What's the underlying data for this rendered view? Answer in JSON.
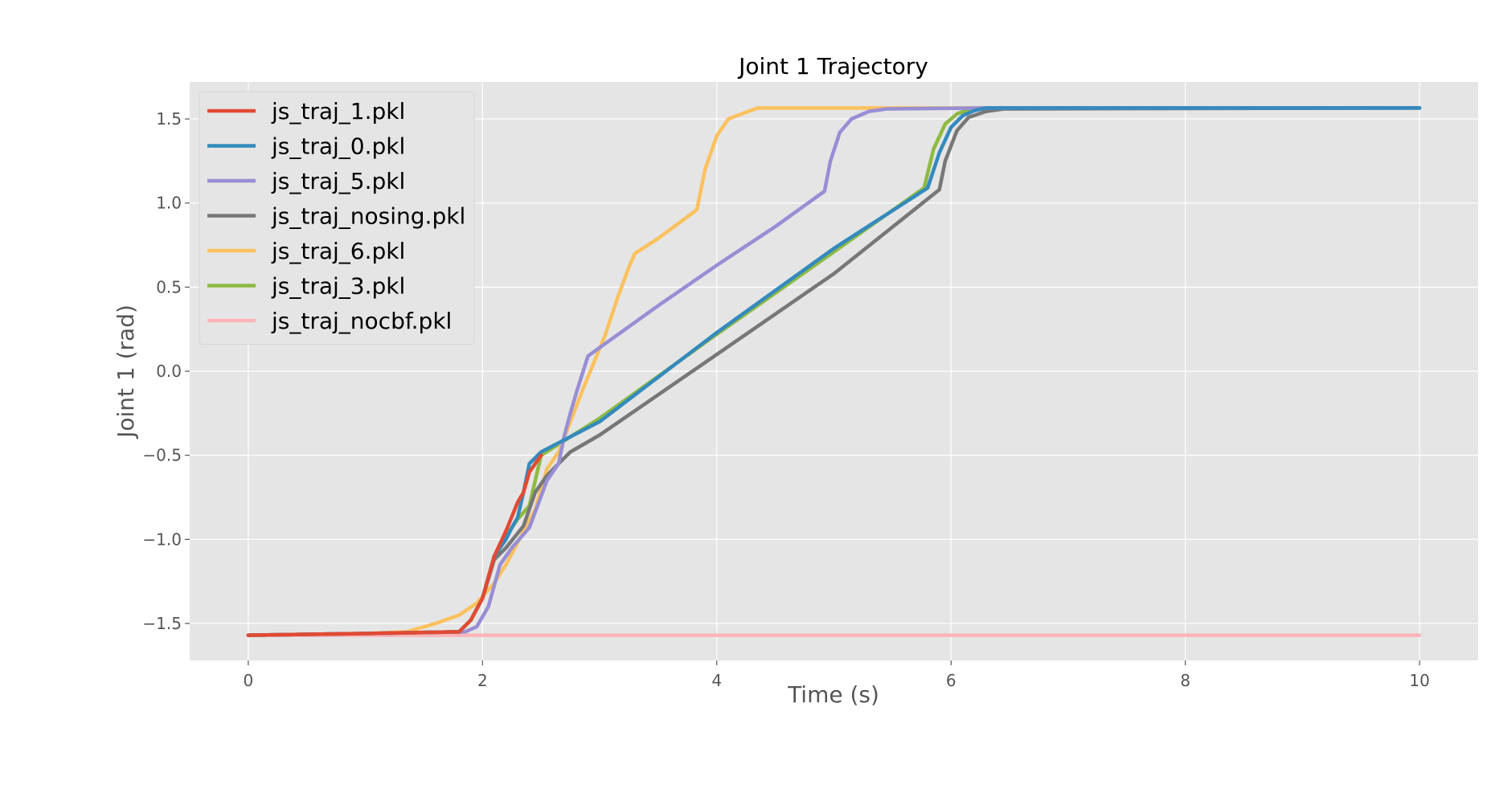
{
  "chart_data": {
    "type": "line",
    "title": "Joint 1 Trajectory",
    "xlabel": "Time (s)",
    "ylabel": "Joint 1 (rad)",
    "xlim": [
      -0.5,
      10.5
    ],
    "ylim": [
      -1.72,
      1.72
    ],
    "xticks": [
      0,
      2,
      4,
      6,
      8,
      10
    ],
    "xtick_labels": [
      "0",
      "2",
      "4",
      "6",
      "8",
      "10"
    ],
    "yticks": [
      -1.5,
      -1.0,
      -0.5,
      0.0,
      0.5,
      1.0,
      1.5
    ],
    "ytick_labels": [
      "−1.5",
      "−1.0",
      "−0.5",
      "0.0",
      "0.5",
      "1.0",
      "1.5"
    ],
    "grid": true,
    "legend_position": "top-left",
    "plot_background": "#e5e5e5",
    "series": [
      {
        "name": "js_traj_1.pkl",
        "color": "#E24A33",
        "x": [
          0,
          1.0,
          1.8,
          1.9,
          2.0,
          2.1,
          2.2,
          2.3,
          2.35,
          2.4,
          2.45,
          2.5
        ],
        "y": [
          -1.57,
          -1.56,
          -1.55,
          -1.48,
          -1.35,
          -1.1,
          -0.95,
          -0.78,
          -0.72,
          -0.6,
          -0.55,
          -0.5
        ]
      },
      {
        "name": "js_traj_0.pkl",
        "color": "#348ABD",
        "x": [
          0,
          1.0,
          1.8,
          1.9,
          2.0,
          2.1,
          2.2,
          2.25,
          2.3,
          2.35,
          2.4,
          2.5,
          3.0,
          4.0,
          5.0,
          5.8,
          5.9,
          6.0,
          6.1,
          6.2,
          6.3,
          10.0
        ],
        "y": [
          -1.57,
          -1.56,
          -1.55,
          -1.48,
          -1.35,
          -1.1,
          -1.0,
          -0.93,
          -0.87,
          -0.72,
          -0.55,
          -0.48,
          -0.3,
          0.23,
          0.73,
          1.09,
          1.3,
          1.45,
          1.52,
          1.55,
          1.565,
          1.565
        ]
      },
      {
        "name": "js_traj_5.pkl",
        "color": "#988ED5",
        "x": [
          0,
          1.0,
          1.85,
          1.95,
          2.05,
          2.15,
          2.25,
          2.4,
          2.55,
          2.65,
          2.7,
          2.75,
          2.8,
          2.9,
          3.0,
          3.5,
          4.0,
          4.5,
          4.92,
          4.97,
          5.05,
          5.15,
          5.3,
          5.45,
          6.3,
          10.0
        ],
        "y": [
          -1.57,
          -1.56,
          -1.55,
          -1.52,
          -1.4,
          -1.15,
          -1.05,
          -0.93,
          -0.65,
          -0.55,
          -0.38,
          -0.25,
          -0.13,
          0.09,
          0.14,
          0.39,
          0.63,
          0.86,
          1.07,
          1.25,
          1.42,
          1.5,
          1.545,
          1.56,
          1.565,
          1.565
        ]
      },
      {
        "name": "js_traj_nosing.pkl",
        "color": "#777777",
        "x": [
          0,
          1.0,
          1.8,
          1.9,
          2.0,
          2.1,
          2.2,
          2.35,
          2.45,
          2.55,
          2.65,
          2.75,
          3.0,
          4.0,
          5.0,
          5.9,
          5.95,
          6.05,
          6.15,
          6.3,
          6.45,
          10.0
        ],
        "y": [
          -1.57,
          -1.56,
          -1.55,
          -1.48,
          -1.35,
          -1.12,
          -1.05,
          -0.92,
          -0.72,
          -0.62,
          -0.55,
          -0.48,
          -0.38,
          0.1,
          0.58,
          1.08,
          1.25,
          1.43,
          1.51,
          1.545,
          1.56,
          1.565
        ]
      },
      {
        "name": "js_traj_6.pkl",
        "color": "#FBC15E",
        "x": [
          0,
          1.0,
          1.35,
          1.6,
          1.8,
          1.95,
          2.1,
          2.2,
          2.3,
          2.45,
          2.55,
          2.65,
          2.75,
          2.85,
          2.95,
          3.05,
          3.15,
          3.25,
          3.3,
          3.5,
          3.83,
          3.9,
          4.0,
          4.1,
          4.25,
          4.35,
          10.0
        ],
        "y": [
          -1.57,
          -1.56,
          -1.55,
          -1.5,
          -1.45,
          -1.38,
          -1.26,
          -1.15,
          -1.02,
          -0.82,
          -0.58,
          -0.48,
          -0.3,
          -0.12,
          0.05,
          0.22,
          0.43,
          0.62,
          0.7,
          0.79,
          0.96,
          1.2,
          1.4,
          1.5,
          1.54,
          1.565,
          1.565
        ]
      },
      {
        "name": "js_traj_3.pkl",
        "color": "#8EBA42",
        "x": [
          0,
          1.0,
          1.8,
          1.9,
          2.0,
          2.1,
          2.2,
          2.3,
          2.4,
          2.5,
          3.0,
          4.0,
          5.0,
          5.77,
          5.85,
          5.95,
          6.05,
          6.15,
          6.3,
          6.45,
          10.0
        ],
        "y": [
          -1.57,
          -1.56,
          -1.55,
          -1.48,
          -1.35,
          -1.1,
          -0.98,
          -0.88,
          -0.8,
          -0.5,
          -0.28,
          0.22,
          0.71,
          1.09,
          1.32,
          1.47,
          1.53,
          1.555,
          1.565,
          1.565,
          1.565
        ]
      },
      {
        "name": "js_traj_nocbf.pkl",
        "color": "#FFB5B8",
        "x": [
          0,
          10.0
        ],
        "y": [
          -1.57,
          -1.57
        ]
      }
    ]
  }
}
